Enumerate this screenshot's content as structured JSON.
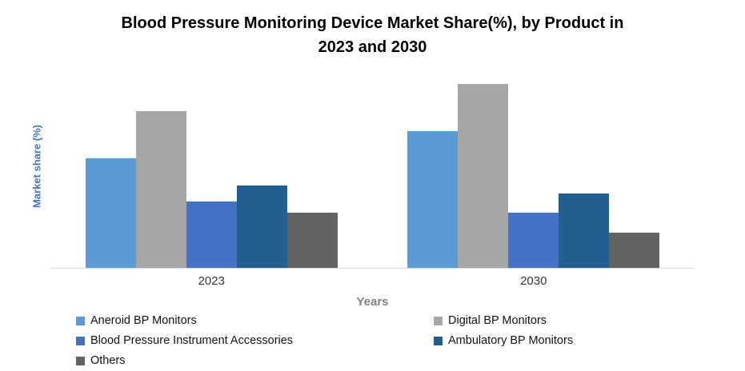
{
  "header": {
    "title_line1": "Blood Pressure Monitoring Device Market Share(%), by Product in",
    "title_line2": "2023 and 2030"
  },
  "chart_data": {
    "type": "bar",
    "title": "Blood Pressure Monitoring Device Market Share(%), by Product in 2023 and 2030",
    "xlabel": "Years",
    "ylabel": "Market share (%)",
    "categories": [
      "2023",
      "2030"
    ],
    "series": [
      {
        "name": "Aneroid BP Monitors",
        "color": "#5B9BD5",
        "values": [
          28,
          35
        ]
      },
      {
        "name": "Digital BP Monitors",
        "color": "#A6A6A6",
        "values": [
          40,
          47
        ]
      },
      {
        "name": "Blood Pressure Instrument Accessories",
        "color": "#4472C4",
        "values": [
          17,
          14
        ]
      },
      {
        "name": "Ambulatory BP Monitors",
        "color": "#255E91",
        "values": [
          21,
          19
        ]
      },
      {
        "name": "Others",
        "color": "#636363",
        "values": [
          14,
          9
        ]
      }
    ],
    "ylim": [
      0,
      50
    ],
    "grid": false,
    "legend_position": "bottom-left",
    "axis_line_color": "#D9D9D9",
    "title_color": "#000000",
    "ylabel_color": "#4472C4",
    "xlabel_color": "#808080"
  }
}
